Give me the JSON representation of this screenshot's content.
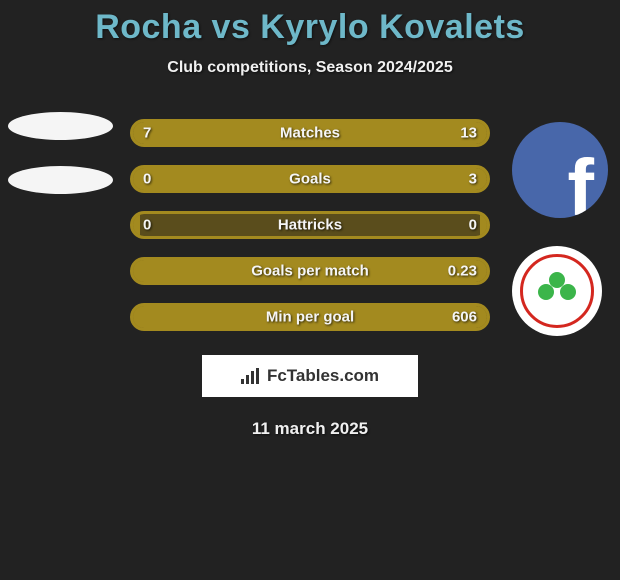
{
  "header": {
    "title": "Rocha vs Kyrylo Kovalets",
    "subtitle": "Club competitions, Season 2024/2025",
    "title_color": "#6eb8c9",
    "title_fontsize": 34
  },
  "colors": {
    "background": "#222222",
    "bar_fill": "#a38a1f",
    "bar_track": "#5a4d1c",
    "text": "#f5f5f5",
    "brand_bg": "#ffffff"
  },
  "stats": [
    {
      "label": "Matches",
      "left_val": "7",
      "right_val": "13",
      "left_pct": 35,
      "right_pct": 65
    },
    {
      "label": "Goals",
      "left_val": "0",
      "right_val": "3",
      "left_pct": 2,
      "right_pct": 98
    },
    {
      "label": "Hattricks",
      "left_val": "0",
      "right_val": "0",
      "left_pct": 2,
      "right_pct": 2
    },
    {
      "label": "Goals per match",
      "left_val": "",
      "right_val": "0.23",
      "left_pct": 2,
      "right_pct": 98
    },
    {
      "label": "Min per goal",
      "left_val": "",
      "right_val": "606",
      "left_pct": 2,
      "right_pct": 98
    }
  ],
  "brand": {
    "text": "FcTables.com"
  },
  "footer": {
    "date": "11 march 2025"
  },
  "badges": {
    "facebook_bg": "#4867aa",
    "club_ring": "#d4271f",
    "shamrock": "#3bb54a"
  }
}
